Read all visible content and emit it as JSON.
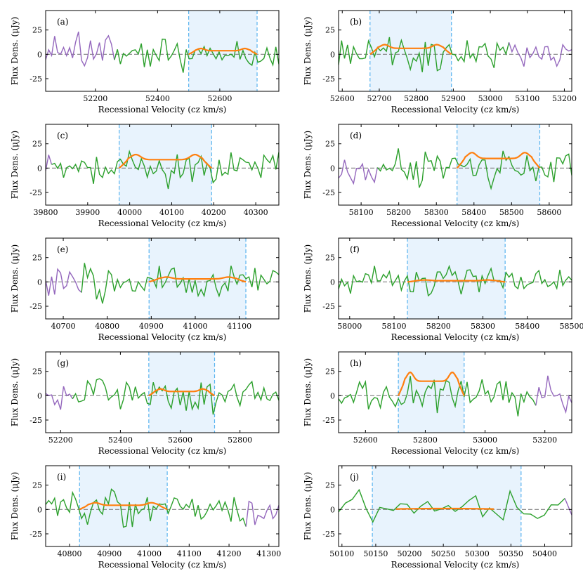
{
  "figure": {
    "width": 830,
    "height": 830
  },
  "colors": {
    "spectrum": "#2ca02c",
    "masked": "#9467bd",
    "model": "#ff7f0e",
    "window_fill": "#e8f3fd",
    "window_line": "#5ab4ef",
    "zero_line": "#808080"
  },
  "chart_data": [
    {
      "type": "line",
      "tag": "(a)",
      "title": "",
      "xlabel": "Recessional Velocity (cz km/s)",
      "ylabel": "Flux Dens. (μJy)",
      "xlim": [
        52040,
        52790
      ],
      "ylim": [
        -38,
        45
      ],
      "xticks": [
        52200,
        52400,
        52600
      ],
      "yticks": [
        -25,
        0,
        25
      ],
      "window": [
        52500,
        52720
      ],
      "model_range": [
        52500,
        52720
      ],
      "model_shape": "double-horn",
      "model_peak": 6,
      "masked_ranges": [
        [
          52040,
          52260
        ]
      ],
      "seed": 11
    },
    {
      "type": "line",
      "tag": "(b)",
      "title": "",
      "xlabel": "Recessional Velocity (cz km/s)",
      "ylabel": "Flux Dens. (μJy)",
      "xlim": [
        52590,
        53220
      ],
      "ylim": [
        -38,
        45
      ],
      "xticks": [
        52600,
        52700,
        52800,
        52900,
        53000,
        53100,
        53200
      ],
      "yticks": [
        -25,
        0,
        25
      ],
      "window": [
        52675,
        52895
      ],
      "model_range": [
        52675,
        52895
      ],
      "model_shape": "double-horn",
      "model_peak": 10,
      "masked_ranges": [
        [
          53050,
          53220
        ]
      ],
      "seed": 23
    },
    {
      "type": "line",
      "tag": "(c)",
      "title": "",
      "xlabel": "Recessional Velocity (cz km/s)",
      "ylabel": "Flux Dens. (μJy)",
      "xlim": [
        39800,
        40355
      ],
      "ylim": [
        -38,
        45
      ],
      "xticks": [
        39800,
        39900,
        40000,
        40100,
        40200,
        40300
      ],
      "yticks": [
        -25,
        0,
        25
      ],
      "window": [
        39975,
        40195
      ],
      "model_range": [
        39975,
        40195
      ],
      "model_shape": "double-horn",
      "model_peak": 14,
      "masked_ranges": [
        [
          39800,
          39810
        ]
      ],
      "seed": 37
    },
    {
      "type": "line",
      "tag": "(d)",
      "title": "",
      "xlabel": "Recessional Velocity (cz km/s)",
      "ylabel": "Flux Dens. (μJy)",
      "xlim": [
        58040,
        58660
      ],
      "ylim": [
        -38,
        45
      ],
      "xticks": [
        58100,
        58200,
        58300,
        58400,
        58500,
        58600
      ],
      "yticks": [
        -25,
        0,
        25
      ],
      "window": [
        58355,
        58575
      ],
      "model_range": [
        58355,
        58575
      ],
      "model_shape": "double-horn",
      "model_peak": 16,
      "masked_ranges": [
        [
          58040,
          58140
        ]
      ],
      "seed": 41
    },
    {
      "type": "line",
      "tag": "(e)",
      "title": "",
      "xlabel": "Recessional Velocity (cz km/s)",
      "ylabel": "Flux Dens. (μJy)",
      "xlim": [
        40660,
        41190
      ],
      "ylim": [
        -38,
        45
      ],
      "xticks": [
        40700,
        40800,
        40900,
        41000,
        41100
      ],
      "yticks": [
        -25,
        0,
        25
      ],
      "window": [
        40895,
        41115
      ],
      "model_range": [
        40895,
        41115
      ],
      "model_shape": "double-horn",
      "model_peak": 5,
      "masked_ranges": [
        [
          40660,
          40740
        ]
      ],
      "seed": 53
    },
    {
      "type": "line",
      "tag": "(f)",
      "title": "",
      "xlabel": "Recessional Velocity (cz km/s)",
      "ylabel": "Flux Dens. (μJy)",
      "xlim": [
        57975,
        58500
      ],
      "ylim": [
        -38,
        45
      ],
      "xticks": [
        58000,
        58100,
        58200,
        58300,
        58400,
        58500
      ],
      "yticks": [
        -25,
        0,
        25
      ],
      "window": [
        58130,
        58350
      ],
      "model_range": [
        58130,
        58350
      ],
      "model_shape": "double-horn",
      "model_peak": 2,
      "masked_ranges": [],
      "seed": 67
    },
    {
      "type": "line",
      "tag": "(g)",
      "title": "",
      "xlabel": "Recessional Velocity (cz km/s)",
      "ylabel": "Flux Dens. (μJy)",
      "xlim": [
        52150,
        52930
      ],
      "ylim": [
        -38,
        45
      ],
      "xticks": [
        52200,
        52400,
        52600,
        52800
      ],
      "yticks": [
        -25,
        0,
        25
      ],
      "window": [
        52495,
        52715
      ],
      "model_range": [
        52495,
        52715
      ],
      "model_shape": "double-horn",
      "model_peak": 7,
      "masked_ranges": [
        [
          52150,
          52230
        ]
      ],
      "seed": 71
    },
    {
      "type": "line",
      "tag": "(h)",
      "title": "",
      "xlabel": "Recessional Velocity (cz km/s)",
      "ylabel": "Flux Dens. (μJy)",
      "xlim": [
        52510,
        53290
      ],
      "ylim": [
        -38,
        45
      ],
      "xticks": [
        52600,
        52800,
        53000,
        53200
      ],
      "yticks": [
        -25,
        0,
        25
      ],
      "window": [
        52710,
        52930
      ],
      "model_range": [
        52710,
        52930
      ],
      "model_shape": "double-horn",
      "model_peak": 24,
      "masked_ranges": [
        [
          53170,
          53290
        ]
      ],
      "seed": 83
    },
    {
      "type": "line",
      "tag": "(i)",
      "title": "",
      "xlabel": "Recessional Velocity (cz km/s)",
      "ylabel": "Flux Dens. (μJy)",
      "xlim": [
        40740,
        41325
      ],
      "ylim": [
        -38,
        45
      ],
      "xticks": [
        40800,
        40900,
        41000,
        41100,
        41200,
        41300
      ],
      "yticks": [
        -25,
        0,
        25
      ],
      "window": [
        40825,
        41045
      ],
      "model_range": [
        40825,
        41045
      ],
      "model_shape": "double-horn",
      "model_peak": 7,
      "masked_ranges": [
        [
          41240,
          41325
        ]
      ],
      "seed": 97
    },
    {
      "type": "line",
      "tag": "(j)",
      "title": "",
      "xlabel": "Recessional Velocity (cz km/s)",
      "ylabel": "Flux Dens. (μJy)",
      "xlim": [
        50095,
        50440
      ],
      "ylim": [
        -38,
        45
      ],
      "xticks": [
        50100,
        50150,
        50200,
        50250,
        50300,
        50350,
        50400
      ],
      "yticks": [
        -25,
        0,
        25
      ],
      "window": [
        50145,
        50365
      ],
      "model_range": [
        50180,
        50325
      ],
      "model_shape": "flat",
      "model_peak": 1,
      "masked_ranges": [
        [
          50425,
          50440
        ]
      ],
      "seed": 101
    }
  ]
}
